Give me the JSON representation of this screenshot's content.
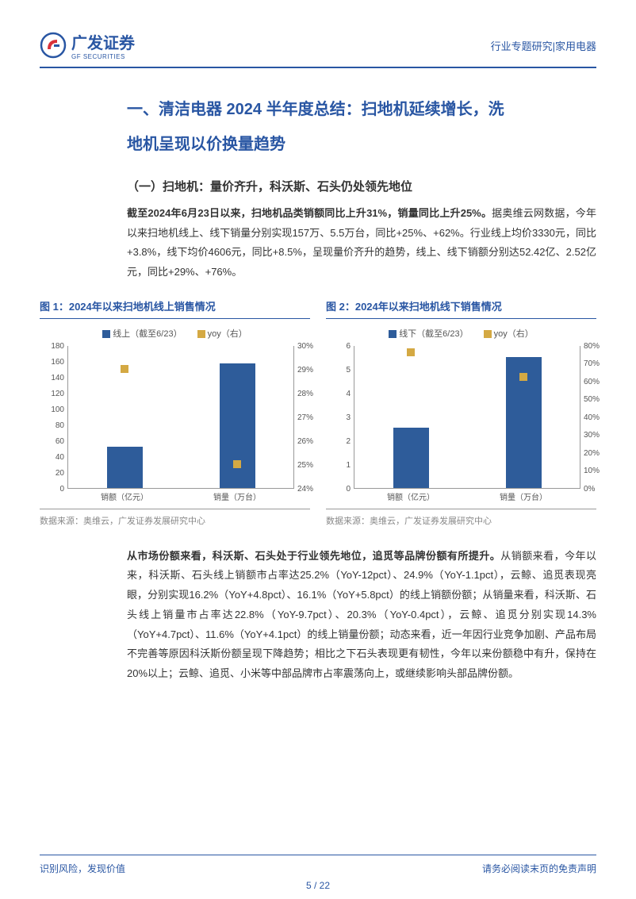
{
  "header": {
    "logo_cn": "广发证券",
    "logo_en": "GF SECURITIES",
    "right_text": "行业专题研究|家用电器"
  },
  "section": {
    "h1_line1": "一、清洁电器 2024 半年度总结：扫地机延续增长，洗",
    "h1_line2": "地机呈现以价换量趋势",
    "h2": "（一）扫地机：量价齐升，科沃斯、石头仍处领先地位",
    "p1_bold": "截至2024年6月23日以来，扫地机品类销额同比上升31%，销量同比上升25%。",
    "p1_rest": "据奥维云网数据，今年以来扫地机线上、线下销量分别实现157万、5.5万台，同比+25%、+62%。行业线上均价3330元，同比+3.8%，线下均价4606元，同比+8.5%，呈现量价齐升的趋势，线上、线下销额分别达52.42亿、2.52亿元，同比+29%、+76%。",
    "p2_bold": "从市场份额来看，科沃斯、石头处于行业领先地位，追觅等品牌份额有所提升。",
    "p2_rest": "从销额来看，今年以来，科沃斯、石头线上销额市占率达25.2%（YoY-12pct）、24.9%（YoY-1.1pct），云鲸、追觅表现亮眼，分别实现16.2%（YoY+4.8pct）、16.1%（YoY+5.8pct）的线上销额份额；从销量来看，科沃斯、石头线上销量市占率达22.8%（YoY-9.7pct）、20.3%（YoY-0.4pct），云鲸、追觅分别实现14.3%（YoY+4.7pct）、11.6%（YoY+4.1pct）的线上销量份额；动态来看，近一年因行业竞争加剧、产品布局不完善等原因科沃斯份额呈现下降趋势；相比之下石头表现更有韧性，今年以来份额稳中有升，保持在20%以上；云鲸、追觅、小米等中部品牌市占率震荡向上，或继续影响头部品牌份额。"
  },
  "chart1": {
    "title": "图 1：2024年以来扫地机线上销售情况",
    "legend_bar": "线上（截至6/23）",
    "legend_yoy": "yoy（右）",
    "bar_color": "#2e5c9a",
    "marker_color": "#d4a943",
    "categories": [
      "销额（亿元）",
      "销量（万台）"
    ],
    "left_axis": {
      "min": 0,
      "max": 180,
      "step": 20,
      "ticks": [
        0,
        20,
        40,
        60,
        80,
        100,
        120,
        140,
        160,
        180
      ]
    },
    "right_axis": {
      "min": 24,
      "max": 30,
      "step": 1,
      "ticks": [
        "24%",
        "25%",
        "26%",
        "27%",
        "28%",
        "29%",
        "30%"
      ]
    },
    "bars": [
      52,
      157
    ],
    "yoy": [
      29,
      25
    ],
    "source": "数据来源：奥维云，广发证券发展研究中心"
  },
  "chart2": {
    "title": "图 2：2024年以来扫地机线下销售情况",
    "legend_bar": "线下（截至6/23）",
    "legend_yoy": "yoy（右）",
    "bar_color": "#2e5c9a",
    "marker_color": "#d4a943",
    "categories": [
      "销额（亿元）",
      "销量（万台）"
    ],
    "left_axis": {
      "min": 0,
      "max": 6,
      "step": 1,
      "ticks": [
        0,
        1,
        2,
        3,
        4,
        5,
        6
      ]
    },
    "right_axis": {
      "min": 0,
      "max": 80,
      "step": 10,
      "ticks": [
        "0%",
        "10%",
        "20%",
        "30%",
        "40%",
        "50%",
        "60%",
        "70%",
        "80%"
      ]
    },
    "bars": [
      2.52,
      5.5
    ],
    "yoy": [
      76,
      62
    ],
    "source": "数据来源：奥维云，广发证券发展研究中心"
  },
  "footer": {
    "left": "识别风险，发现价值",
    "right": "请务必阅读末页的免责声明",
    "page": "5",
    "total": "22"
  }
}
